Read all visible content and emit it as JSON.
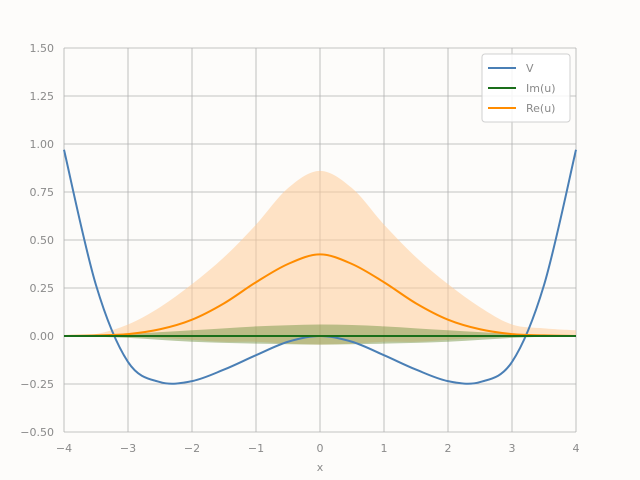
{
  "chart_data": {
    "type": "line",
    "title": "",
    "xlabel": "x",
    "ylabel": "",
    "xlim": [
      -4,
      4
    ],
    "ylim": [
      -0.5,
      1.5
    ],
    "xticks": [
      -4,
      -3,
      -2,
      -1,
      0,
      1,
      2,
      3,
      4
    ],
    "xtick_labels": [
      "−4",
      "−3",
      "−2",
      "−1",
      "0",
      "1",
      "2",
      "3",
      "4"
    ],
    "yticks": [
      -0.5,
      -0.25,
      0.0,
      0.25,
      0.5,
      0.75,
      1.0,
      1.25,
      1.5
    ],
    "ytick_labels": [
      "−0.50",
      "−0.25",
      "0.00",
      "0.25",
      "0.50",
      "0.75",
      "1.00",
      "1.25",
      "1.50"
    ],
    "grid": true,
    "legend_position": "top-right",
    "x": [
      -4,
      -3.5,
      -3,
      -2.5,
      -2,
      -1.5,
      -1,
      -0.5,
      0,
      0.5,
      1,
      1.5,
      2,
      2.5,
      3,
      3.5,
      4
    ],
    "series": [
      {
        "name": "V",
        "color": "#4a7fb5",
        "values": [
          0.97,
          0.265,
          -0.135,
          -0.24,
          -0.235,
          -0.175,
          -0.1,
          -0.03,
          0.0,
          -0.03,
          -0.1,
          -0.175,
          -0.235,
          -0.24,
          -0.135,
          0.265,
          0.97
        ]
      },
      {
        "name": "Im(u)",
        "color": "#1a6e1a",
        "values": [
          0,
          0,
          0,
          0,
          0,
          0,
          0,
          0,
          0,
          0,
          0,
          0,
          0,
          0,
          0,
          0,
          0
        ],
        "band_upper": [
          0,
          0.003,
          0.01,
          0.02,
          0.03,
          0.04,
          0.05,
          0.056,
          0.06,
          0.057,
          0.05,
          0.04,
          0.03,
          0.02,
          0.01,
          0.003,
          0
        ],
        "band_lower": [
          0,
          -0.003,
          -0.01,
          -0.02,
          -0.03,
          -0.036,
          -0.04,
          -0.043,
          -0.045,
          -0.043,
          -0.04,
          -0.036,
          -0.03,
          -0.02,
          -0.01,
          -0.003,
          0
        ],
        "band_color": "#6b8f3a"
      },
      {
        "name": "Re(u)",
        "color": "#ff8c00",
        "values": [
          0,
          0.003,
          0.01,
          0.035,
          0.085,
          0.17,
          0.28,
          0.375,
          0.425,
          0.375,
          0.28,
          0.17,
          0.085,
          0.035,
          0.01,
          0.003,
          0
        ],
        "band_upper": [
          0,
          0.01,
          0.06,
          0.15,
          0.27,
          0.41,
          0.58,
          0.77,
          0.86,
          0.77,
          0.58,
          0.41,
          0.27,
          0.15,
          0.06,
          0.04,
          0.03
        ],
        "band_lower": [
          0,
          0,
          -0.005,
          -0.01,
          -0.02,
          -0.03,
          -0.03,
          -0.04,
          -0.045,
          -0.04,
          -0.03,
          -0.03,
          -0.02,
          -0.01,
          -0.005,
          0,
          0
        ],
        "band_color": "#ffcc99"
      }
    ]
  }
}
